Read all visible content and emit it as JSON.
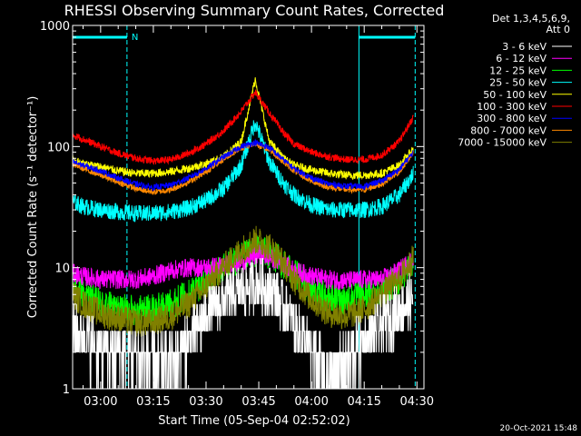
{
  "chart_data": {
    "type": "line",
    "title": "RHESSI Observing Summary Count Rates, Corrected",
    "xlabel": "Start Time (05-Sep-04 02:52:02)",
    "ylabel": "Corrected Count Rate (s⁻¹ detector⁻¹)",
    "x_unit": "time (hh:mm, 05-Sep-04)",
    "y_scale": "log",
    "ylim": [
      1,
      1000
    ],
    "y_ticks": [
      {
        "value": 1,
        "label": "1"
      },
      {
        "value": 10,
        "label": "10"
      },
      {
        "value": 100,
        "label": "100"
      },
      {
        "value": 1000,
        "label": "1000"
      }
    ],
    "xlim": [
      "02:52:02",
      "04:32:00"
    ],
    "x_ticks": [
      "03:00",
      "03:15",
      "03:30",
      "03:45",
      "04:00",
      "04:15",
      "04:30"
    ],
    "legend": {
      "placement": "right",
      "header": [
        "Det 1,3,4,5,6,9,",
        "Att 0"
      ]
    },
    "series": [
      {
        "name": "3 - 6 keV",
        "color": "#ffffff",
        "points": [
          [
            "02:52",
            3
          ],
          [
            "02:55",
            2.8
          ],
          [
            "03:00",
            2
          ],
          [
            "03:05",
            2
          ],
          [
            "03:10",
            2
          ],
          [
            "03:15",
            1.6
          ],
          [
            "03:20",
            1.7
          ],
          [
            "03:25",
            2.5
          ],
          [
            "03:30",
            4
          ],
          [
            "03:35",
            5.5
          ],
          [
            "03:40",
            6.5
          ],
          [
            "03:45",
            7.5
          ],
          [
            "03:50",
            6
          ],
          [
            "03:55",
            3.5
          ],
          [
            "04:00",
            2
          ],
          [
            "04:05",
            1.3
          ],
          [
            "04:10",
            1.8
          ],
          [
            "04:15",
            2.5
          ],
          [
            "04:20",
            3.5
          ],
          [
            "04:25",
            4.5
          ],
          [
            "04:29",
            5.5
          ]
        ]
      },
      {
        "name": "6 - 12 keV",
        "color": "#ff00ff",
        "points": [
          [
            "02:52",
            9
          ],
          [
            "02:55",
            8.5
          ],
          [
            "03:00",
            8
          ],
          [
            "03:05",
            8
          ],
          [
            "03:10",
            8
          ],
          [
            "03:15",
            8.5
          ],
          [
            "03:20",
            9.5
          ],
          [
            "03:25",
            10
          ],
          [
            "03:30",
            10
          ],
          [
            "03:35",
            10.5
          ],
          [
            "03:40",
            11
          ],
          [
            "03:45",
            13
          ],
          [
            "03:50",
            11.5
          ],
          [
            "03:55",
            9.5
          ],
          [
            "04:00",
            8.5
          ],
          [
            "04:05",
            8
          ],
          [
            "04:10",
            7.8
          ],
          [
            "04:15",
            8
          ],
          [
            "04:20",
            8
          ],
          [
            "04:25",
            9.5
          ],
          [
            "04:29",
            12
          ]
        ]
      },
      {
        "name": "12 - 25 keV",
        "color": "#00ff00",
        "points": [
          [
            "02:52",
            7
          ],
          [
            "02:55",
            6
          ],
          [
            "03:00",
            5
          ],
          [
            "03:05",
            4.5
          ],
          [
            "03:10",
            4.5
          ],
          [
            "03:15",
            4.5
          ],
          [
            "03:20",
            5
          ],
          [
            "03:25",
            6
          ],
          [
            "03:30",
            8
          ],
          [
            "03:35",
            10
          ],
          [
            "03:40",
            12
          ],
          [
            "03:45",
            14
          ],
          [
            "03:50",
            12
          ],
          [
            "03:55",
            9
          ],
          [
            "04:00",
            6.5
          ],
          [
            "04:05",
            5.5
          ],
          [
            "04:10",
            5.5
          ],
          [
            "04:15",
            6
          ],
          [
            "04:20",
            6.5
          ],
          [
            "04:25",
            8
          ],
          [
            "04:29",
            11
          ]
        ]
      },
      {
        "name": "25 - 50 keV",
        "color": "#00ffff",
        "points": [
          [
            "02:52",
            35
          ],
          [
            "02:55",
            32
          ],
          [
            "03:00",
            30
          ],
          [
            "03:05",
            29
          ],
          [
            "03:10",
            28
          ],
          [
            "03:15",
            28
          ],
          [
            "03:20",
            29
          ],
          [
            "03:25",
            31
          ],
          [
            "03:30",
            36
          ],
          [
            "03:35",
            45
          ],
          [
            "03:40",
            70
          ],
          [
            "03:44",
            160
          ],
          [
            "03:48",
            75
          ],
          [
            "03:52",
            50
          ],
          [
            "03:55",
            40
          ],
          [
            "04:00",
            33
          ],
          [
            "04:05",
            30
          ],
          [
            "04:10",
            30
          ],
          [
            "04:15",
            30
          ],
          [
            "04:20",
            32
          ],
          [
            "04:25",
            40
          ],
          [
            "04:29",
            60
          ]
        ]
      },
      {
        "name": "50 - 100 keV",
        "color": "#ffff00",
        "points": [
          [
            "02:52",
            78
          ],
          [
            "02:55",
            72
          ],
          [
            "03:00",
            68
          ],
          [
            "03:05",
            63
          ],
          [
            "03:10",
            60
          ],
          [
            "03:15",
            60
          ],
          [
            "03:20",
            62
          ],
          [
            "03:25",
            66
          ],
          [
            "03:30",
            72
          ],
          [
            "03:35",
            82
          ],
          [
            "03:40",
            110
          ],
          [
            "03:44",
            360
          ],
          [
            "03:48",
            110
          ],
          [
            "03:52",
            80
          ],
          [
            "03:55",
            70
          ],
          [
            "04:00",
            64
          ],
          [
            "04:05",
            60
          ],
          [
            "04:10",
            58
          ],
          [
            "04:15",
            58
          ],
          [
            "04:20",
            60
          ],
          [
            "04:25",
            70
          ],
          [
            "04:29",
            95
          ]
        ]
      },
      {
        "name": "100 - 300 keV",
        "color": "#ff0000",
        "points": [
          [
            "02:52",
            125
          ],
          [
            "02:55",
            115
          ],
          [
            "03:00",
            100
          ],
          [
            "03:05",
            88
          ],
          [
            "03:10",
            80
          ],
          [
            "03:15",
            76
          ],
          [
            "03:20",
            78
          ],
          [
            "03:25",
            88
          ],
          [
            "03:30",
            105
          ],
          [
            "03:35",
            135
          ],
          [
            "03:40",
            195
          ],
          [
            "03:44",
            280
          ],
          [
            "03:48",
            190
          ],
          [
            "03:52",
            130
          ],
          [
            "03:55",
            105
          ],
          [
            "04:00",
            90
          ],
          [
            "04:05",
            82
          ],
          [
            "04:10",
            78
          ],
          [
            "04:15",
            78
          ],
          [
            "04:20",
            85
          ],
          [
            "04:25",
            110
          ],
          [
            "04:29",
            175
          ]
        ]
      },
      {
        "name": "300 - 800 keV",
        "color": "#0000ff",
        "points": [
          [
            "02:52",
            75
          ],
          [
            "02:55",
            70
          ],
          [
            "03:00",
            63
          ],
          [
            "03:05",
            55
          ],
          [
            "03:10",
            49
          ],
          [
            "03:15",
            46
          ],
          [
            "03:20",
            48
          ],
          [
            "03:25",
            55
          ],
          [
            "03:30",
            66
          ],
          [
            "03:35",
            82
          ],
          [
            "03:40",
            100
          ],
          [
            "03:44",
            108
          ],
          [
            "03:48",
            98
          ],
          [
            "03:52",
            78
          ],
          [
            "03:55",
            66
          ],
          [
            "04:00",
            55
          ],
          [
            "04:05",
            49
          ],
          [
            "04:10",
            47
          ],
          [
            "04:15",
            47
          ],
          [
            "04:20",
            52
          ],
          [
            "04:25",
            65
          ],
          [
            "04:29",
            90
          ]
        ]
      },
      {
        "name": "800 - 7000 keV",
        "color": "#ff8800",
        "points": [
          [
            "02:52",
            72
          ],
          [
            "02:55",
            66
          ],
          [
            "03:00",
            58
          ],
          [
            "03:05",
            51
          ],
          [
            "03:10",
            45
          ],
          [
            "03:15",
            42
          ],
          [
            "03:20",
            44
          ],
          [
            "03:25",
            51
          ],
          [
            "03:30",
            62
          ],
          [
            "03:35",
            79
          ],
          [
            "03:40",
            98
          ],
          [
            "03:44",
            105
          ],
          [
            "03:48",
            95
          ],
          [
            "03:52",
            75
          ],
          [
            "03:55",
            63
          ],
          [
            "04:00",
            52
          ],
          [
            "04:05",
            46
          ],
          [
            "04:10",
            44
          ],
          [
            "04:15",
            44
          ],
          [
            "04:20",
            49
          ],
          [
            "04:25",
            62
          ],
          [
            "04:29",
            88
          ]
        ]
      },
      {
        "name": "7000 - 15000 keV",
        "color": "#808000",
        "points": [
          [
            "02:52",
            6
          ],
          [
            "02:55",
            5
          ],
          [
            "03:00",
            4.2
          ],
          [
            "03:05",
            3.8
          ],
          [
            "03:10",
            3.5
          ],
          [
            "03:15",
            3.5
          ],
          [
            "03:20",
            4
          ],
          [
            "03:25",
            5
          ],
          [
            "03:30",
            7
          ],
          [
            "03:35",
            10
          ],
          [
            "03:40",
            14
          ],
          [
            "03:44",
            17
          ],
          [
            "03:48",
            15
          ],
          [
            "03:52",
            11
          ],
          [
            "03:55",
            8
          ],
          [
            "04:00",
            5.5
          ],
          [
            "04:05",
            4.2
          ],
          [
            "04:10",
            4
          ],
          [
            "04:15",
            4.5
          ],
          [
            "04:20",
            6
          ],
          [
            "04:25",
            8
          ],
          [
            "04:29",
            12
          ]
        ]
      }
    ],
    "flags": {
      "color": "#00ffff",
      "label": "N",
      "intervals": [
        [
          "02:52:02",
          "03:07:30"
        ],
        [
          "04:13:30",
          "04:29:30"
        ]
      ],
      "dashed_markers": [
        "03:07:30",
        "04:29:30"
      ],
      "solid_markers": [
        "04:13:30"
      ]
    }
  },
  "footer": {
    "timestamp": "20-Oct-2021 15:48"
  }
}
